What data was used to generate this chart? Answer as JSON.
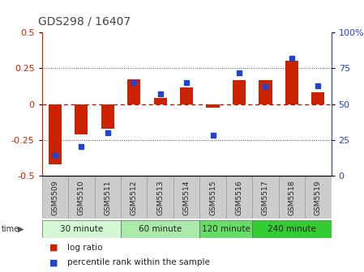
{
  "title": "GDS298 / 16407",
  "samples": [
    "GSM5509",
    "GSM5510",
    "GSM5511",
    "GSM5512",
    "GSM5513",
    "GSM5514",
    "GSM5515",
    "GSM5516",
    "GSM5517",
    "GSM5518",
    "GSM5519"
  ],
  "log_ratio": [
    -0.42,
    -0.21,
    -0.175,
    0.175,
    0.04,
    0.115,
    -0.028,
    0.165,
    0.165,
    0.305,
    0.08
  ],
  "percentile": [
    14,
    20,
    30,
    65,
    57,
    65,
    28,
    72,
    62,
    82,
    63
  ],
  "groups": [
    {
      "label": "30 minute",
      "start": 0,
      "end": 3,
      "color": "#d4f7d4"
    },
    {
      "label": "60 minute",
      "start": 3,
      "end": 6,
      "color": "#aaeaaa"
    },
    {
      "label": "120 minute",
      "start": 6,
      "end": 8,
      "color": "#66dd66"
    },
    {
      "label": "240 minute",
      "start": 8,
      "end": 11,
      "color": "#33cc33"
    }
  ],
  "ylim_left": [
    -0.5,
    0.5
  ],
  "ylim_right": [
    0,
    100
  ],
  "yticks_left": [
    -0.5,
    -0.25,
    0,
    0.25,
    0.5
  ],
  "ytick_labels_left": [
    "-0.5",
    "-0.25",
    "0",
    "0.25",
    "0.5"
  ],
  "yticks_right": [
    0,
    25,
    50,
    75,
    100
  ],
  "bar_color": "#cc2200",
  "dot_color": "#2244cc",
  "hline_color": "#cc0000",
  "dotted_line_color": "#444444",
  "bg_color": "#ffffff",
  "plot_bg": "#ffffff",
  "title_color": "#444444",
  "left_label_color": "#cc2200",
  "right_label_color": "#2244cc",
  "bar_width": 0.5,
  "sample_box_color": "#cccccc",
  "sample_box_edge": "#999999"
}
